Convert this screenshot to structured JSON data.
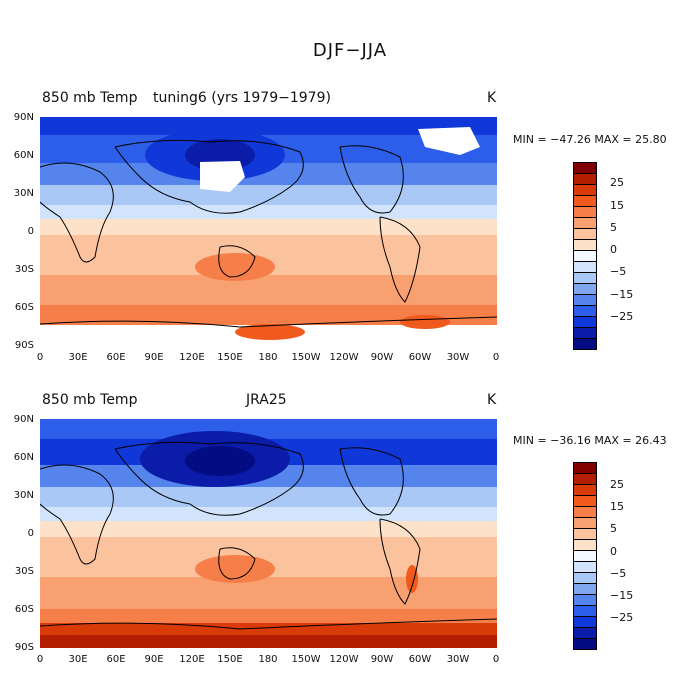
{
  "title": "DJF−JJA",
  "panels": [
    {
      "left_title": "850 mb Temp",
      "mid_title": "tuning6 (yrs 1979−1979)",
      "units": "K",
      "minmax": "MIN = −47.26 MAX =  25.80"
    },
    {
      "left_title": "850 mb Temp",
      "mid_title": "JRA25",
      "units": "K",
      "minmax": "MIN = −36.16 MAX =  26.43"
    }
  ],
  "lat_labels": [
    "90N",
    "60N",
    "30N",
    "0",
    "30S",
    "60S",
    "90S"
  ],
  "lon_labels": [
    "0",
    "30E",
    "60E",
    "90E",
    "120E",
    "150E",
    "180",
    "150W",
    "120W",
    "90W",
    "60W",
    "30W",
    "0"
  ],
  "colorbar": {
    "labels": [
      "25",
      "15",
      "5",
      "0",
      "−5",
      "−15",
      "−25"
    ],
    "colors": [
      "#800000",
      "#b41e00",
      "#d83a08",
      "#f05a1c",
      "#f67e48",
      "#f9a070",
      "#fbc29e",
      "#fde1c9",
      "#f4f8ff",
      "#d2e4fb",
      "#a9c8f5",
      "#7ea7ee",
      "#5484ec",
      "#2c5eea",
      "#1038d8",
      "#0a1ca8",
      "#040c84"
    ]
  }
}
